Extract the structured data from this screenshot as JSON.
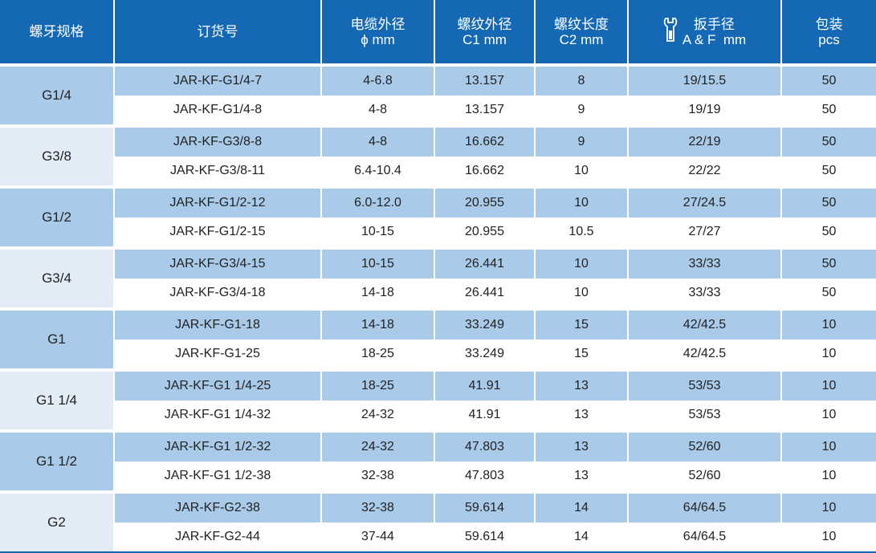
{
  "headers": {
    "spec": "螺牙规格",
    "order": "订货号",
    "cable_line1": "电缆外径",
    "cable_line2": "ϕ mm",
    "thread_dia_line1": "螺纹外径",
    "thread_dia_line2": "C1 mm",
    "thread_len_line1": "螺纹长度",
    "thread_len_line2": "C2 mm",
    "wrench_line1": "扳手径",
    "wrench_line2": "A & F  mm",
    "pack_line1": "包装",
    "pack_line2": "pcs"
  },
  "groups": [
    {
      "spec": "G1/4",
      "rows": [
        {
          "order": "JAR-KF-G1/4-7",
          "cable": "4-6.8",
          "c1": "13.157",
          "c2": "8",
          "af": "19/15.5",
          "pcs": "50"
        },
        {
          "order": "JAR-KF-G1/4-8",
          "cable": "4-8",
          "c1": "13.157",
          "c2": "9",
          "af": "19/19",
          "pcs": "50"
        }
      ]
    },
    {
      "spec": "G3/8",
      "rows": [
        {
          "order": "JAR-KF-G3/8-8",
          "cable": "4-8",
          "c1": "16.662",
          "c2": "9",
          "af": "22/19",
          "pcs": "50"
        },
        {
          "order": "JAR-KF-G3/8-11",
          "cable": "6.4-10.4",
          "c1": "16.662",
          "c2": "10",
          "af": "22/22",
          "pcs": "50"
        }
      ]
    },
    {
      "spec": "G1/2",
      "rows": [
        {
          "order": "JAR-KF-G1/2-12",
          "cable": "6.0-12.0",
          "c1": "20.955",
          "c2": "10",
          "af": "27/24.5",
          "pcs": "50"
        },
        {
          "order": "JAR-KF-G1/2-15",
          "cable": "10-15",
          "c1": "20.955",
          "c2": "10.5",
          "af": "27/27",
          "pcs": "50"
        }
      ]
    },
    {
      "spec": "G3/4",
      "rows": [
        {
          "order": "JAR-KF-G3/4-15",
          "cable": "10-15",
          "c1": "26.441",
          "c2": "10",
          "af": "33/33",
          "pcs": "50"
        },
        {
          "order": "JAR-KF-G3/4-18",
          "cable": "14-18",
          "c1": "26.441",
          "c2": "10",
          "af": "33/33",
          "pcs": "50"
        }
      ]
    },
    {
      "spec": "G1",
      "rows": [
        {
          "order": "JAR-KF-G1-18",
          "cable": "14-18",
          "c1": "33.249",
          "c2": "15",
          "af": "42/42.5",
          "pcs": "10"
        },
        {
          "order": "JAR-KF-G1-25",
          "cable": "18-25",
          "c1": "33.249",
          "c2": "15",
          "af": "42/42.5",
          "pcs": "10"
        }
      ]
    },
    {
      "spec": "G1 1/4",
      "rows": [
        {
          "order": "JAR-KF-G1 1/4-25",
          "cable": "18-25",
          "c1": "41.91",
          "c2": "13",
          "af": "53/53",
          "pcs": "10"
        },
        {
          "order": "JAR-KF-G1 1/4-32",
          "cable": "24-32",
          "c1": "41.91",
          "c2": "13",
          "af": "53/53",
          "pcs": "10"
        }
      ]
    },
    {
      "spec": "G1 1/2",
      "rows": [
        {
          "order": "JAR-KF-G1 1/2-32",
          "cable": "24-32",
          "c1": "47.803",
          "c2": "13",
          "af": "52/60",
          "pcs": "10"
        },
        {
          "order": "JAR-KF-G1 1/2-38",
          "cable": "32-38",
          "c1": "47.803",
          "c2": "13",
          "af": "52/60",
          "pcs": "10"
        }
      ]
    },
    {
      "spec": "G2",
      "rows": [
        {
          "order": "JAR-KF-G2-38",
          "cable": "32-38",
          "c1": "59.614",
          "c2": "14",
          "af": "64/64.5",
          "pcs": "10"
        },
        {
          "order": "JAR-KF-G2-44",
          "cable": "37-44",
          "c1": "59.614",
          "c2": "14",
          "af": "64/64.5",
          "pcs": "10"
        }
      ]
    }
  ],
  "icons": {
    "wrench": "wrench-icon"
  },
  "colors": {
    "header": "#1468b4",
    "row_dark": "#a9cbe9",
    "spec_light": "#e2ecf6"
  }
}
